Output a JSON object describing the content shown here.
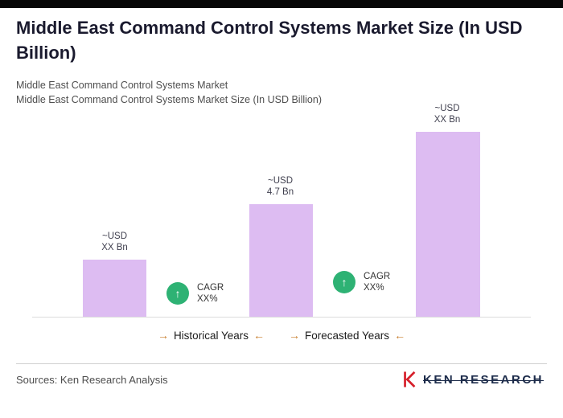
{
  "header": {
    "title": "Middle East Command Control Systems Market Size (In USD Billion)",
    "subtitle_line1": "Middle East Command Control Systems Market",
    "subtitle_line2": "Middle East Command Control Systems Market Size (In USD Billion)"
  },
  "chart_data": {
    "type": "bar",
    "title": "Middle East Command Control Systems Market Size (In USD Billion)",
    "unit": "USD Billion",
    "ylim": [
      0,
      8
    ],
    "grid": false,
    "bar_color": "#ddbcf2",
    "bars": [
      {
        "name": "historical-start",
        "value": 2.4,
        "label_line1": "~USD",
        "label_line2": "XX Bn"
      },
      {
        "name": "current",
        "value": 4.7,
        "label_line1": "~USD",
        "label_line2": "4.7 Bn"
      },
      {
        "name": "forecast-end",
        "value": 7.7,
        "label_line1": "~USD",
        "label_line2": "XX Bn"
      }
    ],
    "annotations": [
      {
        "line1": "CAGR",
        "line2": "XX%"
      },
      {
        "line1": "CAGR",
        "line2": "XX%"
      }
    ],
    "annotation_icon": "up-arrow-circle",
    "annotation_color": "#2eb274",
    "annotation_arrow": "↑",
    "x_axis": {
      "left_label": "Historical Years",
      "right_label": "Forecasted Years",
      "arrow_right": "→",
      "arrow_left": "←"
    }
  },
  "footer": {
    "sources": "Sources: Ken Research Analysis",
    "logo_text": "KEN RESEARCH"
  }
}
